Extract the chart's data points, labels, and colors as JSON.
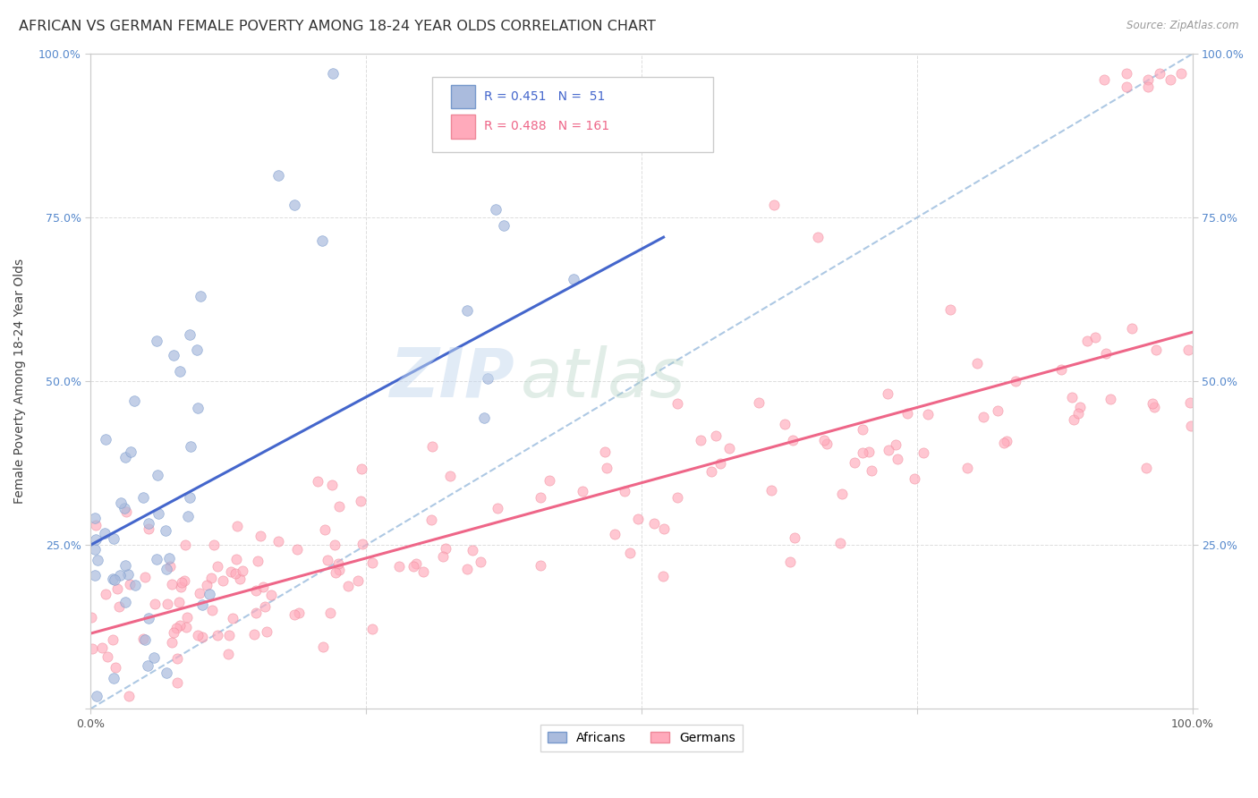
{
  "title": "AFRICAN VS GERMAN FEMALE POVERTY AMONG 18-24 YEAR OLDS CORRELATION CHART",
  "source": "Source: ZipAtlas.com",
  "ylabel": "Female Poverty Among 18-24 Year Olds",
  "xlim": [
    0,
    1
  ],
  "ylim": [
    0,
    1
  ],
  "african_color": "#aabbdd",
  "african_edge_color": "#7799cc",
  "german_color": "#ffaabb",
  "german_edge_color": "#ee8899",
  "african_line_color": "#4466cc",
  "german_line_color": "#ee6688",
  "diagonal_color": "#99bbdd",
  "R_african": 0.451,
  "N_african": 51,
  "R_german": 0.488,
  "N_german": 161,
  "legend_african": "Africans",
  "legend_german": "Germans",
  "background_color": "#ffffff",
  "watermark_zip": "ZIP",
  "watermark_atlas": "atlas",
  "title_fontsize": 11.5,
  "axis_label_fontsize": 10,
  "tick_fontsize": 9,
  "right_tick_color": "#5588cc",
  "left_tick_color": "#5588cc",
  "grid_color": "#dddddd",
  "grid_style": "--"
}
